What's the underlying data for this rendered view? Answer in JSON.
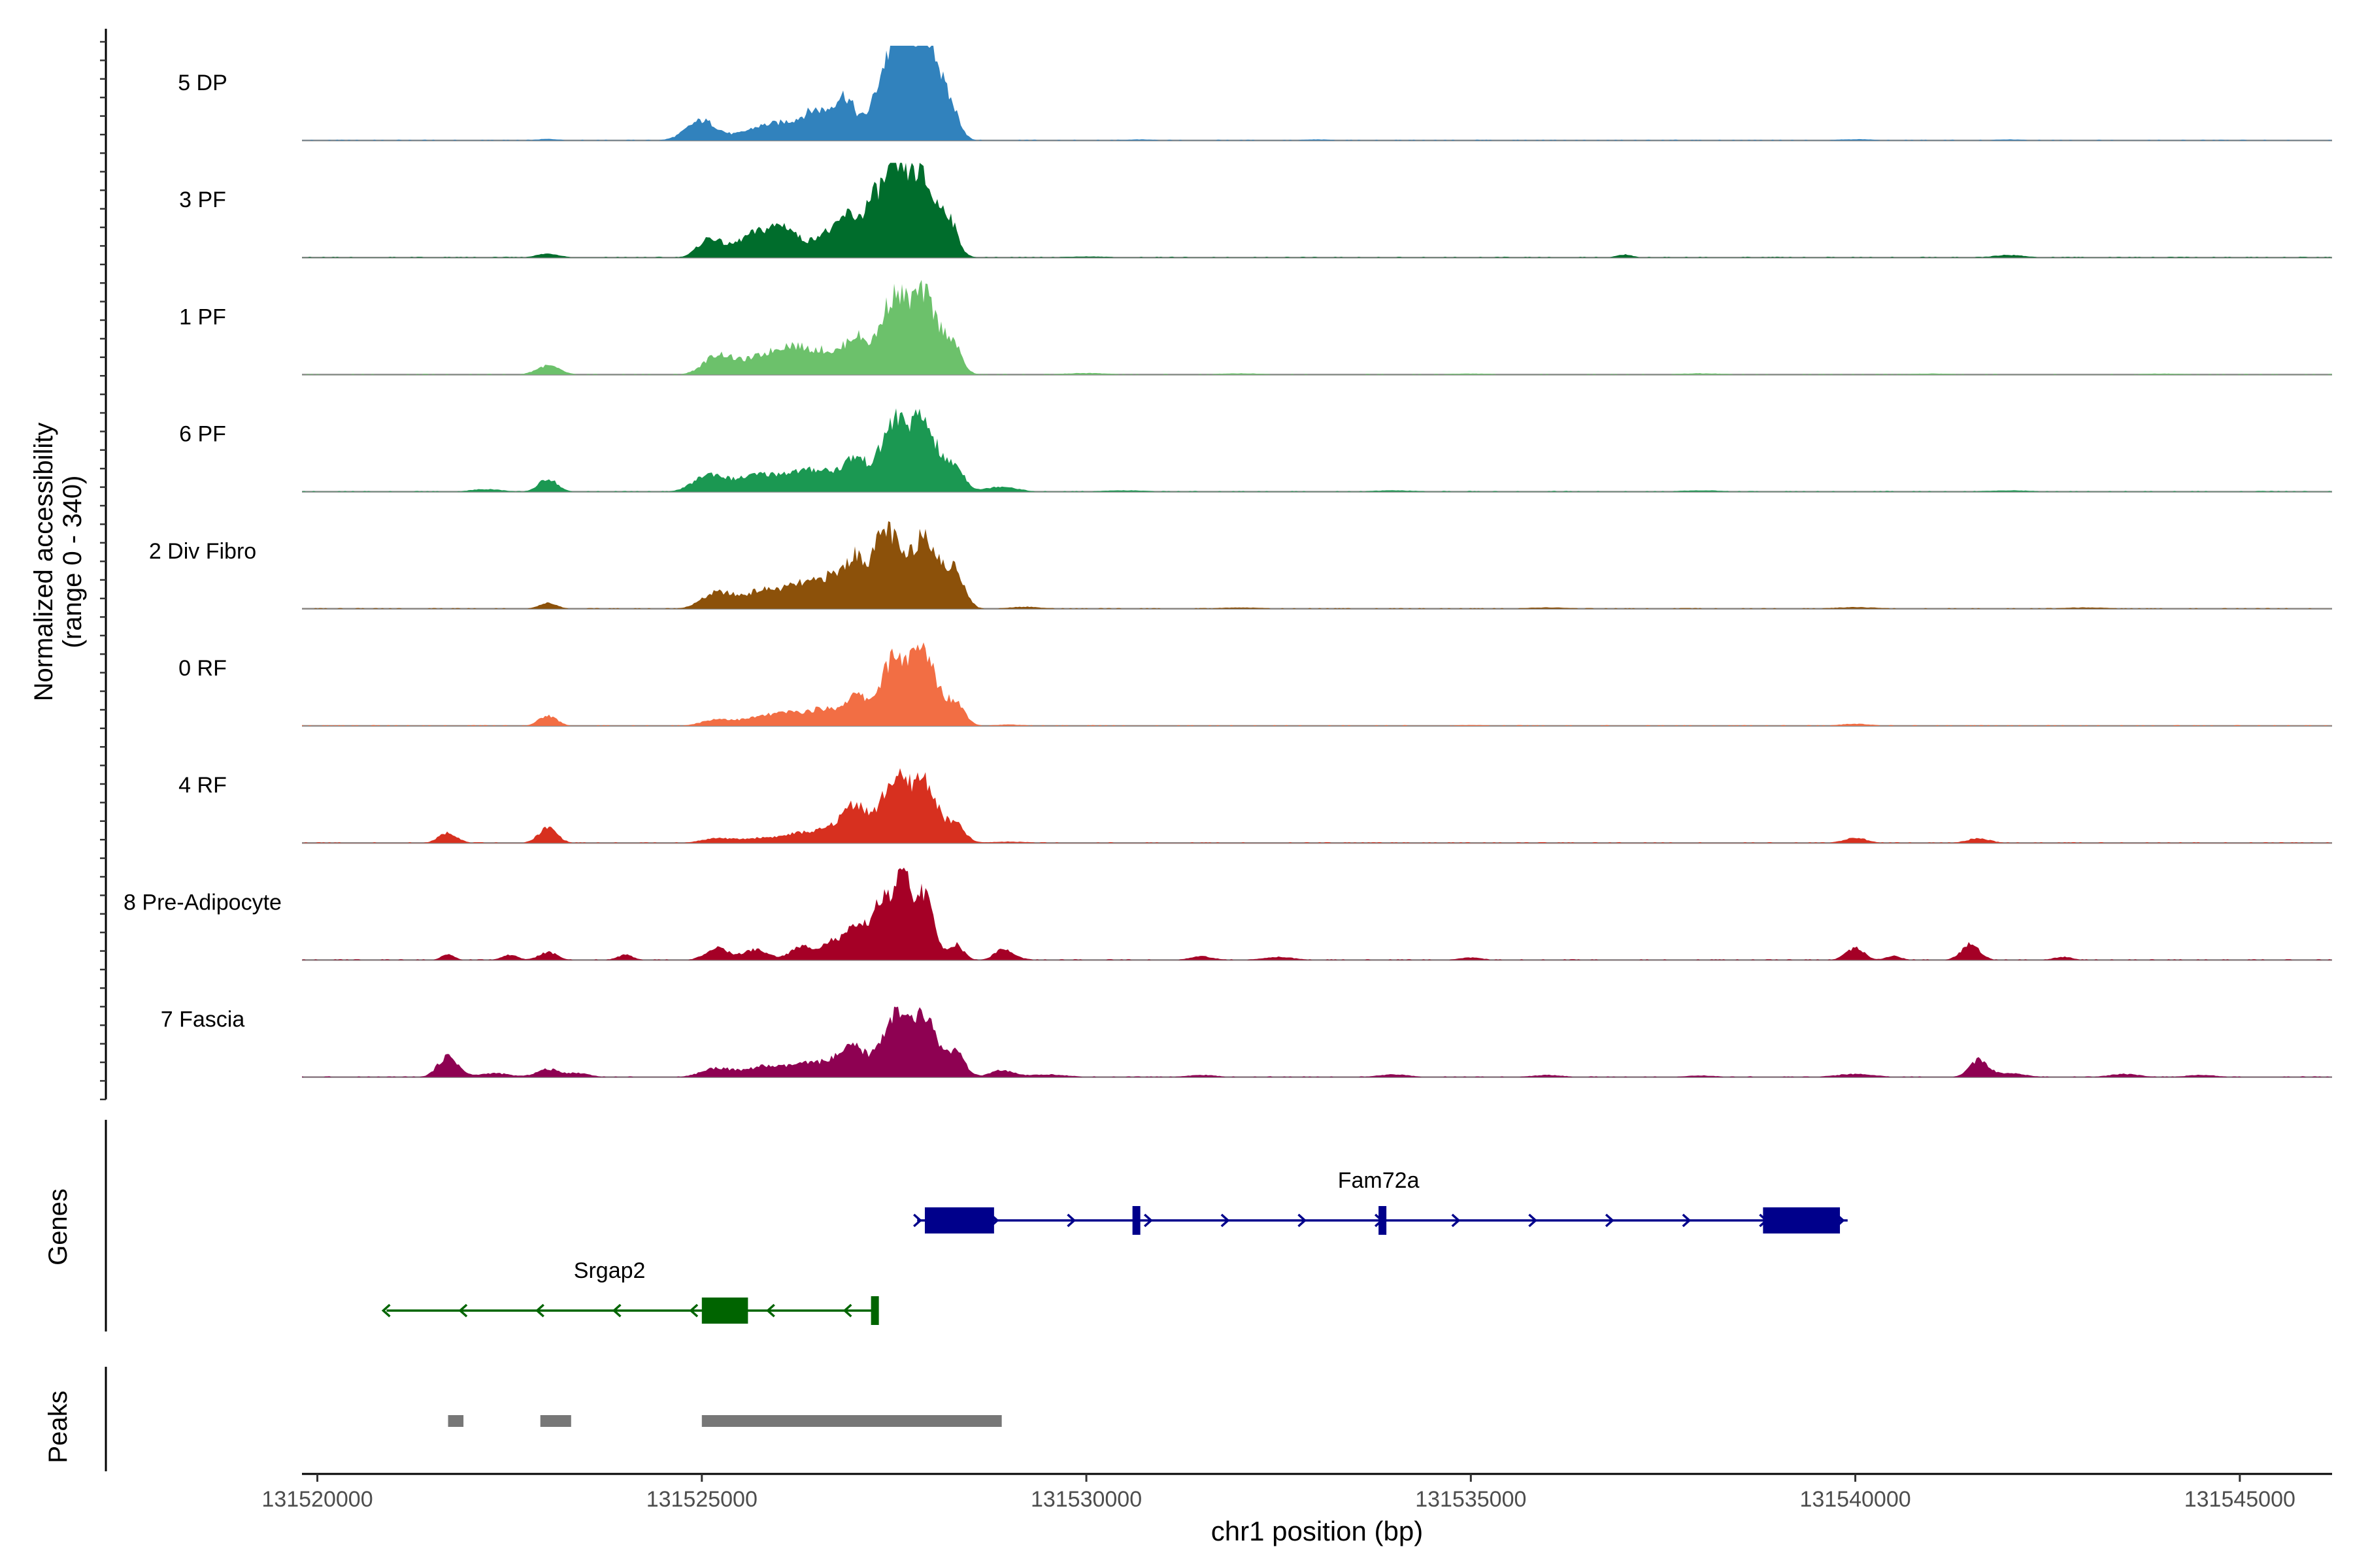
{
  "chart_data": {
    "type": "area",
    "ylabel_line1": "Normalized accessibility",
    "ylabel_line2": "(range 0 - 340)",
    "xlabel": "chr1 position (bp)",
    "xlim": [
      131519800,
      131546200
    ],
    "x_ticks": [
      131520000,
      131525000,
      131530000,
      131535000,
      131540000,
      131545000
    ],
    "x_tick_labels": [
      "131520000",
      "131525000",
      "131530000",
      "131535000",
      "131540000",
      "131545000"
    ],
    "y_range": [
      0,
      340
    ],
    "coverage_x_range": [
      131519800,
      131546200
    ],
    "tracks": [
      {
        "name": "5 DP",
        "color": "#3182BD",
        "scale": 0.95,
        "peaks": [
          [
            131525000,
            80,
            200
          ],
          [
            131525800,
            55,
            260
          ],
          [
            131526200,
            50,
            200
          ],
          [
            131526500,
            100,
            160
          ],
          [
            131526850,
            170,
            140
          ],
          [
            131527450,
            300,
            200
          ],
          [
            131527750,
            310,
            180
          ],
          [
            131528000,
            270,
            120
          ],
          [
            131528250,
            120,
            110
          ],
          [
            131523000,
            6,
            150
          ],
          [
            131530700,
            4,
            200
          ],
          [
            131533000,
            4,
            200
          ],
          [
            131540000,
            5,
            250
          ],
          [
            131542000,
            4,
            200
          ]
        ]
      },
      {
        "name": "3 PF",
        "color": "#006D2C",
        "scale": 1.0,
        "peaks": [
          [
            131525100,
            70,
            150
          ],
          [
            131525700,
            90,
            250
          ],
          [
            131526100,
            95,
            180
          ],
          [
            131526600,
            90,
            160
          ],
          [
            131526900,
            140,
            120
          ],
          [
            131527200,
            170,
            130
          ],
          [
            131527500,
            300,
            160
          ],
          [
            131527850,
            290,
            170
          ],
          [
            131528200,
            140,
            120
          ],
          [
            131523000,
            15,
            150
          ],
          [
            131537000,
            12,
            100
          ],
          [
            131542000,
            10,
            200
          ],
          [
            131530000,
            4,
            300
          ]
        ]
      },
      {
        "name": "1 PF",
        "color": "#6CC16B",
        "scale": 0.98,
        "peaks": [
          [
            131525200,
            70,
            180
          ],
          [
            131525800,
            70,
            300
          ],
          [
            131526200,
            80,
            200
          ],
          [
            131526600,
            80,
            180
          ],
          [
            131527000,
            140,
            150
          ],
          [
            131527500,
            300,
            180
          ],
          [
            131527900,
            290,
            160
          ],
          [
            131528250,
            120,
            120
          ],
          [
            131523000,
            35,
            150
          ],
          [
            131530000,
            6,
            300
          ],
          [
            131532000,
            5,
            300
          ],
          [
            131535000,
            4,
            300
          ],
          [
            131538000,
            5,
            300
          ],
          [
            131541000,
            4,
            300
          ],
          [
            131544000,
            4,
            300
          ]
        ]
      },
      {
        "name": "6 PF",
        "color": "#1B9852",
        "scale": 1.0,
        "peaks": [
          [
            131525100,
            65,
            200
          ],
          [
            131525700,
            60,
            250
          ],
          [
            131526200,
            60,
            220
          ],
          [
            131526600,
            70,
            200
          ],
          [
            131527000,
            120,
            150
          ],
          [
            131527500,
            260,
            180
          ],
          [
            131527900,
            250,
            170
          ],
          [
            131528300,
            90,
            120
          ],
          [
            131528900,
            20,
            200
          ],
          [
            131523000,
            50,
            120
          ],
          [
            131522200,
            10,
            200
          ],
          [
            131530500,
            5,
            300
          ],
          [
            131534000,
            5,
            300
          ],
          [
            131538000,
            5,
            300
          ],
          [
            131542000,
            5,
            300
          ]
        ]
      },
      {
        "name": "2 Div Fibro",
        "color": "#8C510A",
        "scale": 1.0,
        "peaks": [
          [
            131525200,
            60,
            200
          ],
          [
            131525800,
            70,
            250
          ],
          [
            131526300,
            80,
            200
          ],
          [
            131526700,
            110,
            180
          ],
          [
            131527000,
            160,
            130
          ],
          [
            131527400,
            300,
            170
          ],
          [
            131527900,
            290,
            170
          ],
          [
            131528300,
            140,
            120
          ],
          [
            131523000,
            22,
            120
          ],
          [
            131529200,
            8,
            200
          ],
          [
            131532000,
            5,
            300
          ],
          [
            131536000,
            5,
            300
          ],
          [
            131540000,
            6,
            300
          ],
          [
            131543000,
            5,
            300
          ]
        ]
      },
      {
        "name": "0 RF",
        "color": "#F26E44",
        "scale": 0.98,
        "peaks": [
          [
            131525200,
            25,
            200
          ],
          [
            131525800,
            35,
            250
          ],
          [
            131526200,
            40,
            200
          ],
          [
            131526600,
            60,
            180
          ],
          [
            131527000,
            110,
            150
          ],
          [
            131527500,
            260,
            180
          ],
          [
            131527900,
            270,
            160
          ],
          [
            131528300,
            90,
            120
          ],
          [
            131523000,
            40,
            120
          ],
          [
            131529000,
            5,
            200
          ],
          [
            131540000,
            8,
            200
          ],
          [
            131535000,
            3,
            300
          ]
        ]
      },
      {
        "name": "4 RF",
        "color": "#D7301F",
        "scale": 0.98,
        "peaks": [
          [
            131521700,
            40,
            120
          ],
          [
            131523000,
            60,
            120
          ],
          [
            131525200,
            18,
            200
          ],
          [
            131525800,
            20,
            250
          ],
          [
            131526300,
            35,
            200
          ],
          [
            131526700,
            50,
            180
          ],
          [
            131527000,
            140,
            150
          ],
          [
            131527500,
            240,
            180
          ],
          [
            131527900,
            230,
            160
          ],
          [
            131528300,
            70,
            120
          ],
          [
            131540000,
            20,
            150
          ],
          [
            131541600,
            18,
            150
          ],
          [
            131529000,
            5,
            250
          ]
        ]
      },
      {
        "name": "8 Pre-Adipocyte",
        "color": "#A50026",
        "scale": 1.0,
        "peaks": [
          [
            131521700,
            25,
            80
          ],
          [
            131522500,
            20,
            100
          ],
          [
            131523000,
            30,
            120
          ],
          [
            131524000,
            20,
            100
          ],
          [
            131525200,
            45,
            150
          ],
          [
            131525700,
            40,
            160
          ],
          [
            131526300,
            50,
            150
          ],
          [
            131526700,
            70,
            150
          ],
          [
            131527000,
            110,
            120
          ],
          [
            131527300,
            200,
            120
          ],
          [
            131527600,
            300,
            130
          ],
          [
            131527900,
            230,
            120
          ],
          [
            131528300,
            60,
            100
          ],
          [
            131528900,
            30,
            100
          ],
          [
            131529000,
            15,
            150
          ],
          [
            131531500,
            14,
            150
          ],
          [
            131532500,
            12,
            200
          ],
          [
            131535000,
            10,
            150
          ],
          [
            131540000,
            45,
            120
          ],
          [
            131540500,
            15,
            100
          ],
          [
            131541500,
            60,
            120
          ],
          [
            131542700,
            12,
            120
          ]
        ]
      },
      {
        "name": "7 Fascia",
        "color": "#8E0152",
        "scale": 1.0,
        "peaks": [
          [
            131521700,
            80,
            130
          ],
          [
            131522300,
            15,
            200
          ],
          [
            131523000,
            30,
            150
          ],
          [
            131523400,
            15,
            150
          ],
          [
            131525200,
            35,
            200
          ],
          [
            131525800,
            40,
            220
          ],
          [
            131526300,
            45,
            200
          ],
          [
            131526700,
            55,
            180
          ],
          [
            131527000,
            100,
            150
          ],
          [
            131527500,
            230,
            170
          ],
          [
            131527900,
            220,
            160
          ],
          [
            131528300,
            90,
            120
          ],
          [
            131528900,
            25,
            150
          ],
          [
            131529500,
            10,
            250
          ],
          [
            131531500,
            8,
            200
          ],
          [
            131534000,
            10,
            200
          ],
          [
            131536000,
            8,
            200
          ],
          [
            131538000,
            6,
            200
          ],
          [
            131540000,
            12,
            250
          ],
          [
            131541600,
            65,
            120
          ],
          [
            131542000,
            15,
            200
          ],
          [
            131543500,
            12,
            200
          ],
          [
            131544500,
            8,
            200
          ]
        ]
      }
    ],
    "genes": [
      {
        "name": "Fam72a",
        "strand": "+",
        "color": "#00008B",
        "start": 131527800,
        "end": 131539900,
        "exons": [
          [
            131527900,
            131528800,
            "thick"
          ],
          [
            131530600,
            131530700,
            "thin"
          ],
          [
            131533800,
            131533900,
            "thin"
          ],
          [
            131538800,
            131539800,
            "thick"
          ]
        ]
      },
      {
        "name": "Srgap2",
        "strand": "-",
        "color": "#006400",
        "start": 131520900,
        "end": 131527300,
        "exons": [
          [
            131525000,
            131525600,
            "thick"
          ],
          [
            131527200,
            131527300,
            "thin"
          ]
        ]
      }
    ],
    "genes_label": "Genes",
    "peaks_label": "Peaks",
    "peak_regions": [
      [
        131521700,
        131521900
      ],
      [
        131522900,
        131523300
      ],
      [
        131525000,
        131528900
      ]
    ],
    "peak_color": "#777777"
  }
}
